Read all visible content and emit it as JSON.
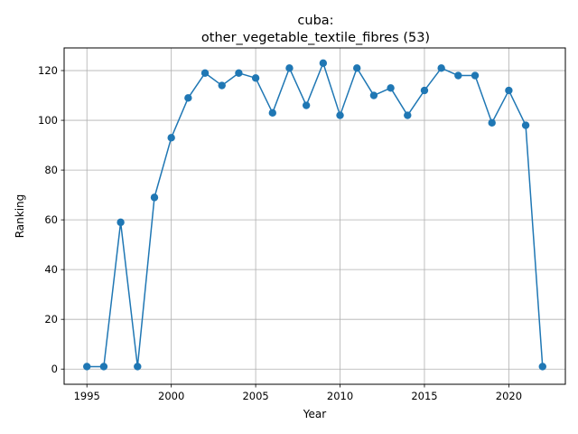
{
  "chart_data": {
    "type": "line",
    "title_line1": "cuba:",
    "title_line2": "other_vegetable_textile_fibres (53)",
    "xlabel": "Year",
    "ylabel": "Ranking",
    "xlim": [
      1993.65,
      2023.35
    ],
    "ylim": [
      -6.1,
      129.1
    ],
    "xticks": [
      1995,
      2000,
      2005,
      2010,
      2015,
      2020
    ],
    "yticks": [
      0,
      20,
      40,
      60,
      80,
      100,
      120
    ],
    "grid": true,
    "line_color": "#1f77b4",
    "x": [
      1995,
      1996,
      1997,
      1998,
      1999,
      2000,
      2001,
      2002,
      2003,
      2004,
      2005,
      2006,
      2007,
      2008,
      2009,
      2010,
      2011,
      2012,
      2013,
      2014,
      2015,
      2016,
      2017,
      2018,
      2019,
      2020,
      2021,
      2022
    ],
    "series": [
      {
        "values": [
          1,
          1,
          59,
          1,
          69,
          93,
          109,
          119,
          114,
          119,
          117,
          103,
          121,
          106,
          123,
          102,
          121,
          110,
          113,
          102,
          112,
          121,
          118,
          118,
          99,
          112,
          98,
          1
        ]
      }
    ]
  }
}
